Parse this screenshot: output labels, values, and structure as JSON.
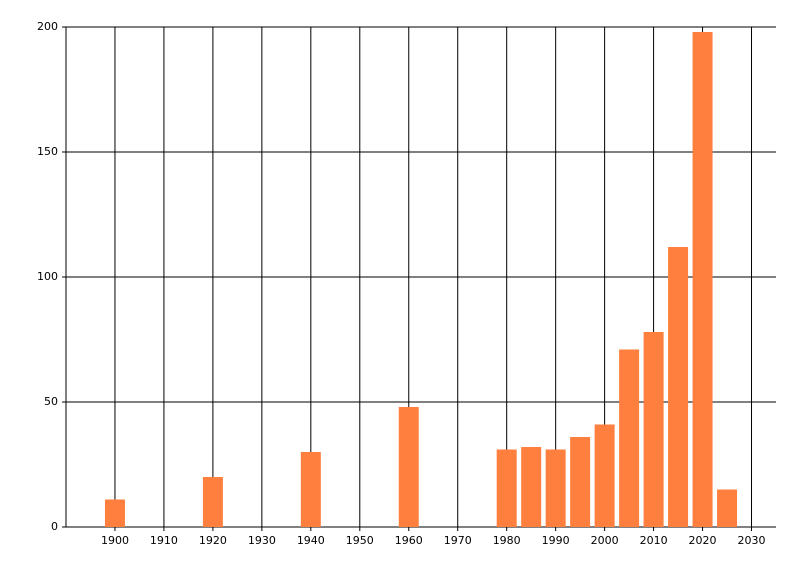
{
  "chart_data": {
    "type": "bar",
    "x": [
      1900,
      1920,
      1940,
      1960,
      1980,
      1985,
      1990,
      1995,
      2000,
      2005,
      2010,
      2015,
      2020,
      2025
    ],
    "values": [
      11,
      20,
      30,
      48,
      31,
      32,
      31,
      36,
      41,
      71,
      78,
      112,
      198,
      15
    ],
    "color": "#ff7f3f",
    "xlim": [
      1890,
      2035
    ],
    "xticks": [
      1900,
      1910,
      1920,
      1930,
      1940,
      1950,
      1960,
      1970,
      1980,
      1990,
      2000,
      2010,
      2020,
      2030
    ],
    "ylim": [
      0,
      200
    ],
    "yticks": [
      0,
      50,
      100,
      150,
      200
    ],
    "grid": true
  }
}
